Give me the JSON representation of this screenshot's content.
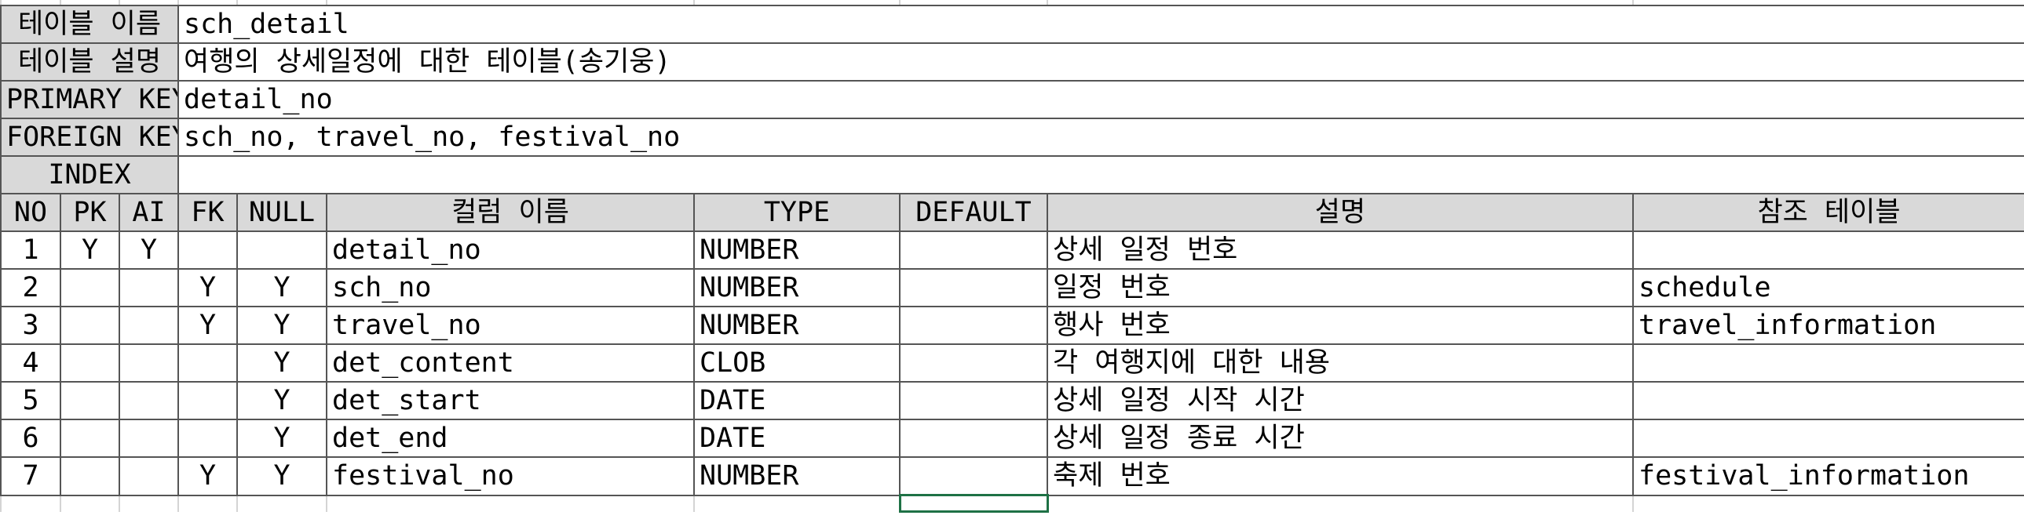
{
  "meta": {
    "table_name_label": "테이블 이름",
    "table_name_value": "sch_detail",
    "table_desc_label": "테이블 설명",
    "table_desc_value": "여행의 상세일정에 대한 테이블(송기웅)",
    "primary_key_label": "PRIMARY KEY",
    "primary_key_value": "detail_no",
    "foreign_key_label": "FOREIGN KEY",
    "foreign_key_value": "sch_no, travel_no, festival_no",
    "index_label": "INDEX",
    "index_value": ""
  },
  "columns": {
    "no": "NO",
    "pk": "PK",
    "ai": "AI",
    "fk": "FK",
    "null": "NULL",
    "name": "컬럼 이름",
    "type": "TYPE",
    "default": "DEFAULT",
    "desc": "설명",
    "ref": "참조 테이블"
  },
  "rows": [
    {
      "no": "1",
      "pk": "Y",
      "ai": "Y",
      "fk": "",
      "null": "",
      "name": "detail_no",
      "type": "NUMBER",
      "default": "",
      "desc": "상세 일정 번호",
      "ref": ""
    },
    {
      "no": "2",
      "pk": "",
      "ai": "",
      "fk": "Y",
      "null": "Y",
      "name": "sch_no",
      "type": "NUMBER",
      "default": "",
      "desc": "일정 번호",
      "ref": "schedule"
    },
    {
      "no": "3",
      "pk": "",
      "ai": "",
      "fk": "Y",
      "null": "Y",
      "name": "travel_no",
      "type": "NUMBER",
      "default": "",
      "desc": "행사 번호",
      "ref": "travel_information"
    },
    {
      "no": "4",
      "pk": "",
      "ai": "",
      "fk": "",
      "null": "Y",
      "name": "det_content",
      "type": "CLOB",
      "default": "",
      "desc": "각 여행지에 대한 내용",
      "ref": ""
    },
    {
      "no": "5",
      "pk": "",
      "ai": "",
      "fk": "",
      "null": "Y",
      "name": "det_start",
      "type": "DATE",
      "default": "",
      "desc": "상세 일정 시작 시간",
      "ref": ""
    },
    {
      "no": "6",
      "pk": "",
      "ai": "",
      "fk": "",
      "null": "Y",
      "name": "det_end",
      "type": "DATE",
      "default": "",
      "desc": "상세 일정 종료 시간",
      "ref": ""
    },
    {
      "no": "7",
      "pk": "",
      "ai": "",
      "fk": "Y",
      "null": "Y",
      "name": "festival_no",
      "type": "NUMBER",
      "default": "",
      "desc": "축제 번호",
      "ref": "festival_information"
    }
  ],
  "style": {
    "header_fill": "#d9d9d9",
    "grid_border": "#555555",
    "selection_border": "#1e7145"
  }
}
